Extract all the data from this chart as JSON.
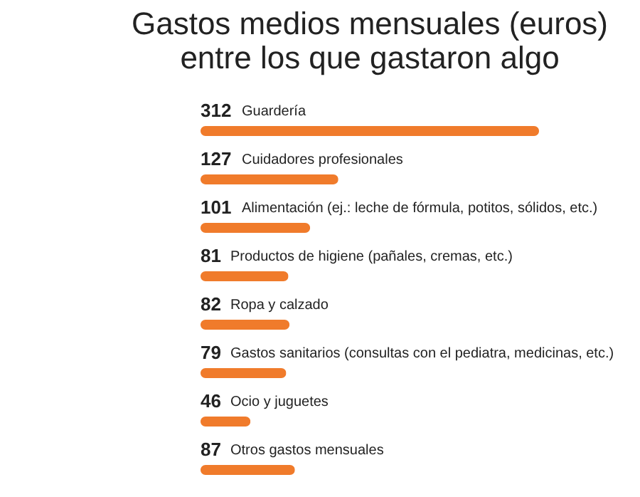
{
  "chart_data": {
    "type": "bar",
    "orientation": "horizontal",
    "title": "Gastos medios mensuales (euros)\nentre los que gastaron algo",
    "categories": [
      "Guardería",
      "Cuidadores profesionales",
      "Alimentación (ej.: leche de fórmula, potitos, sólidos, etc.)",
      "Productos de higiene (pañales, cremas, etc.)",
      "Ropa y calzado",
      "Gastos sanitarios (consultas con el pediatra, medicinas, etc.)",
      "Ocio y juguetes",
      "Otros gastos mensuales"
    ],
    "values": [
      312,
      127,
      101,
      81,
      82,
      79,
      46,
      87
    ],
    "color": "#f07b2b",
    "data_labels": true
  }
}
